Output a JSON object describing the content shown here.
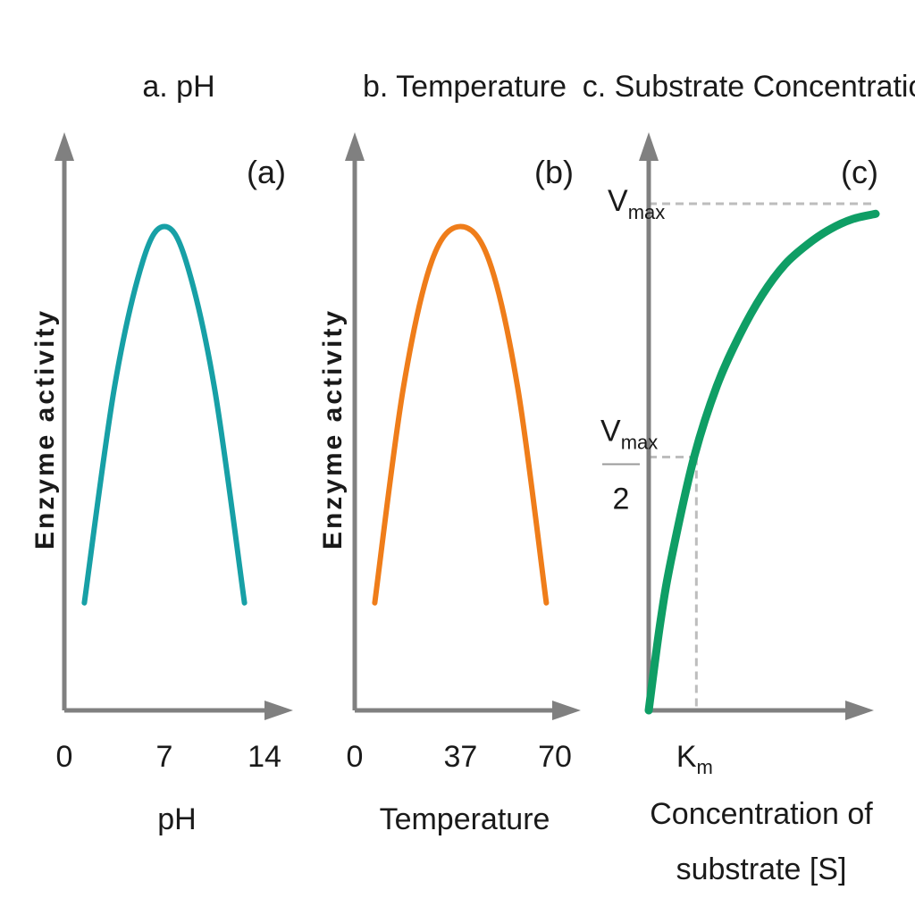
{
  "chart_data": [
    {
      "type": "line",
      "title": "a. pH",
      "panel_tag": "(a)",
      "xlabel": "pH",
      "ylabel": "Enzyme activity",
      "xlim": [
        0,
        14
      ],
      "ylim": [
        0,
        1
      ],
      "xticks": [
        "0",
        "7",
        "14"
      ],
      "tick_values": [
        0,
        7,
        14
      ],
      "color": "#17a0a6",
      "series": [
        {
          "x": [
            1.4,
            3.5,
            5.5,
            7,
            8.5,
            10.5,
            12.6
          ],
          "y": [
            0.22,
            0.66,
            0.92,
            0.99,
            0.92,
            0.66,
            0.22
          ]
        }
      ]
    },
    {
      "type": "line",
      "title": "b. Temperature",
      "panel_tag": "(b)",
      "xlabel": "Temperature",
      "ylabel": "Enzyme activity",
      "xlim": [
        0,
        70
      ],
      "ylim": [
        0,
        1
      ],
      "xticks": [
        "0",
        "37",
        "70"
      ],
      "tick_values": [
        0,
        37,
        70
      ],
      "color": "#ef7d1a",
      "series": [
        {
          "x": [
            7,
            17,
            27,
            37,
            47,
            57,
            67
          ],
          "y": [
            0.22,
            0.66,
            0.92,
            0.99,
            0.92,
            0.66,
            0.22
          ]
        }
      ]
    },
    {
      "type": "line",
      "title": "c. Substrate Concentration",
      "panel_tag": "(c)",
      "xlabel": "Concentration of substrate [S]",
      "xlabel_lines": [
        "Concentration of",
        "substrate [S]"
      ],
      "ylabel": "",
      "xlim": [
        0,
        10
      ],
      "ylim": [
        0,
        1
      ],
      "color": "#0f9e65",
      "vmax_label": "V",
      "vmax_sub": "max",
      "vmax_y": 1.0,
      "half_num": "V",
      "half_num_sub": "max",
      "half_den": "2",
      "half_y": 0.5,
      "km_label": "K",
      "km_sub": "m",
      "km_x": 2.1,
      "series": [
        {
          "x": [
            0,
            0.5,
            1,
            2,
            3,
            4,
            5,
            6,
            7,
            8,
            9,
            10
          ],
          "y": [
            0,
            0.17,
            0.3,
            0.5,
            0.64,
            0.74,
            0.82,
            0.88,
            0.92,
            0.95,
            0.97,
            0.98
          ]
        }
      ]
    }
  ]
}
